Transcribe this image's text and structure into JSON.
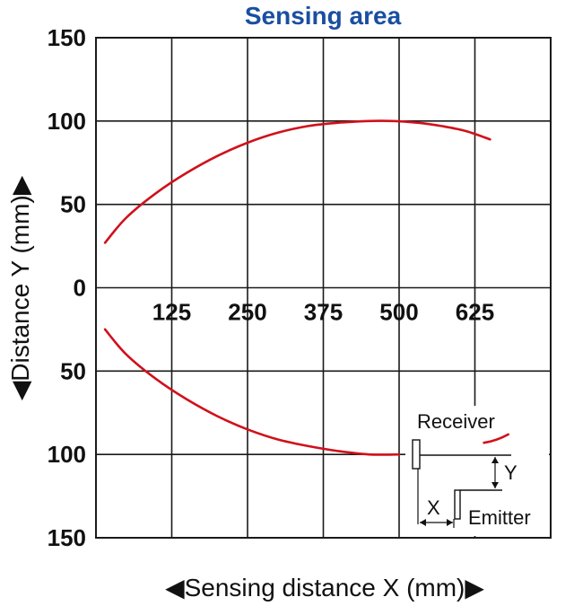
{
  "chart_data": {
    "type": "line",
    "title": "Sensing area",
    "xlabel": "◀Sensing distance X (mm)▶",
    "ylabel": "◀Distance Y (mm)▶",
    "x_ticks": [
      "125",
      "250",
      "375",
      "500",
      "625"
    ],
    "y_ticks": [
      "150",
      "100",
      "50",
      "0",
      "50",
      "100",
      "150"
    ],
    "xlim": [
      0,
      750
    ],
    "ylim": [
      -150,
      150
    ],
    "grid": true,
    "series": [
      {
        "values": [
          [
            15,
            27
          ],
          [
            50,
            42
          ],
          [
            100,
            57
          ],
          [
            150,
            69
          ],
          [
            200,
            79
          ],
          [
            250,
            87
          ],
          [
            300,
            93
          ],
          [
            350,
            97
          ],
          [
            400,
            99
          ],
          [
            450,
            100
          ],
          [
            490,
            100
          ],
          [
            530,
            99
          ],
          [
            570,
            97
          ],
          [
            610,
            94
          ],
          [
            650,
            89
          ]
        ]
      },
      {
        "values": [
          [
            15,
            -25
          ],
          [
            50,
            -40
          ],
          [
            100,
            -55
          ],
          [
            150,
            -67
          ],
          [
            200,
            -77
          ],
          [
            250,
            -85
          ],
          [
            300,
            -91
          ],
          [
            350,
            -95
          ],
          [
            400,
            -98
          ],
          [
            450,
            -100
          ],
          [
            500,
            -100
          ]
        ]
      },
      {
        "values": [
          [
            640,
            -93
          ],
          [
            680,
            -88
          ]
        ]
      }
    ],
    "inset": {
      "receiver_label": "Receiver",
      "emitter_label": "Emitter",
      "x_label": "X",
      "y_label": "Y"
    },
    "colors": {
      "curve": "#d0111b",
      "grid": "#1a1a1a",
      "title": "#1a4fa0"
    }
  }
}
